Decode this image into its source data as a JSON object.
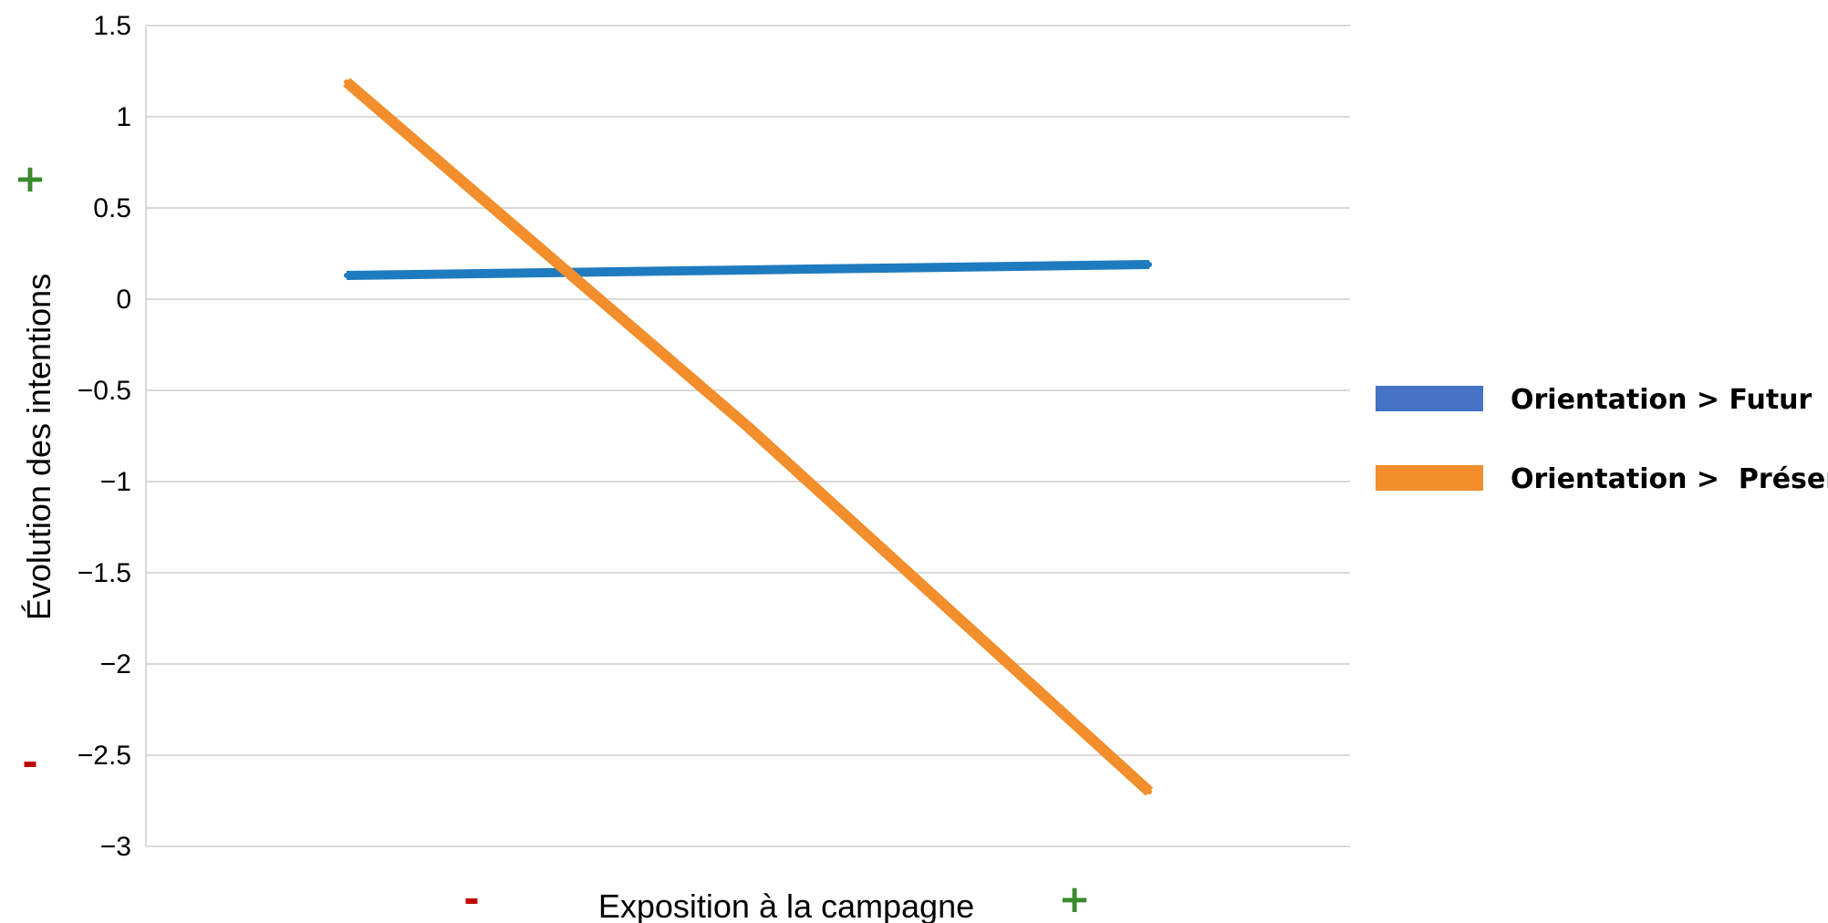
{
  "chart_data": {
    "type": "line",
    "xlabel": "Exposition à la campagne",
    "ylabel": "Évolution des intentions",
    "ylim": [
      -3,
      1.5
    ],
    "yticks": [
      1.5,
      1,
      0.5,
      0,
      -0.5,
      -1,
      -1.5,
      -2,
      -2.5,
      -3
    ],
    "ytick_labels": [
      "1.5",
      "1",
      "0.5",
      "0",
      "−0.5",
      "−1",
      "−1.5",
      "−2",
      "−2.5",
      "−3"
    ],
    "x": [
      1,
      2,
      3
    ],
    "xlim": [
      0.5,
      3.5
    ],
    "grid": true,
    "legend_position": "right",
    "series": [
      {
        "name": "Orientation > Futur",
        "values": [
          0.13,
          0.16,
          0.19
        ],
        "color": "#1f7bbf",
        "legend_color": "#4472c4"
      },
      {
        "name": "Orientation >  Présent",
        "values": [
          1.19,
          -0.7,
          -2.7
        ],
        "color": "#f28e2b",
        "legend_color": "#f28e2b"
      }
    ],
    "annotations": {
      "y_plus": "+",
      "y_minus": "-",
      "x_minus": "-",
      "x_plus": "+",
      "plus_color": "#3a8a2e",
      "minus_color": "#c00000"
    }
  }
}
